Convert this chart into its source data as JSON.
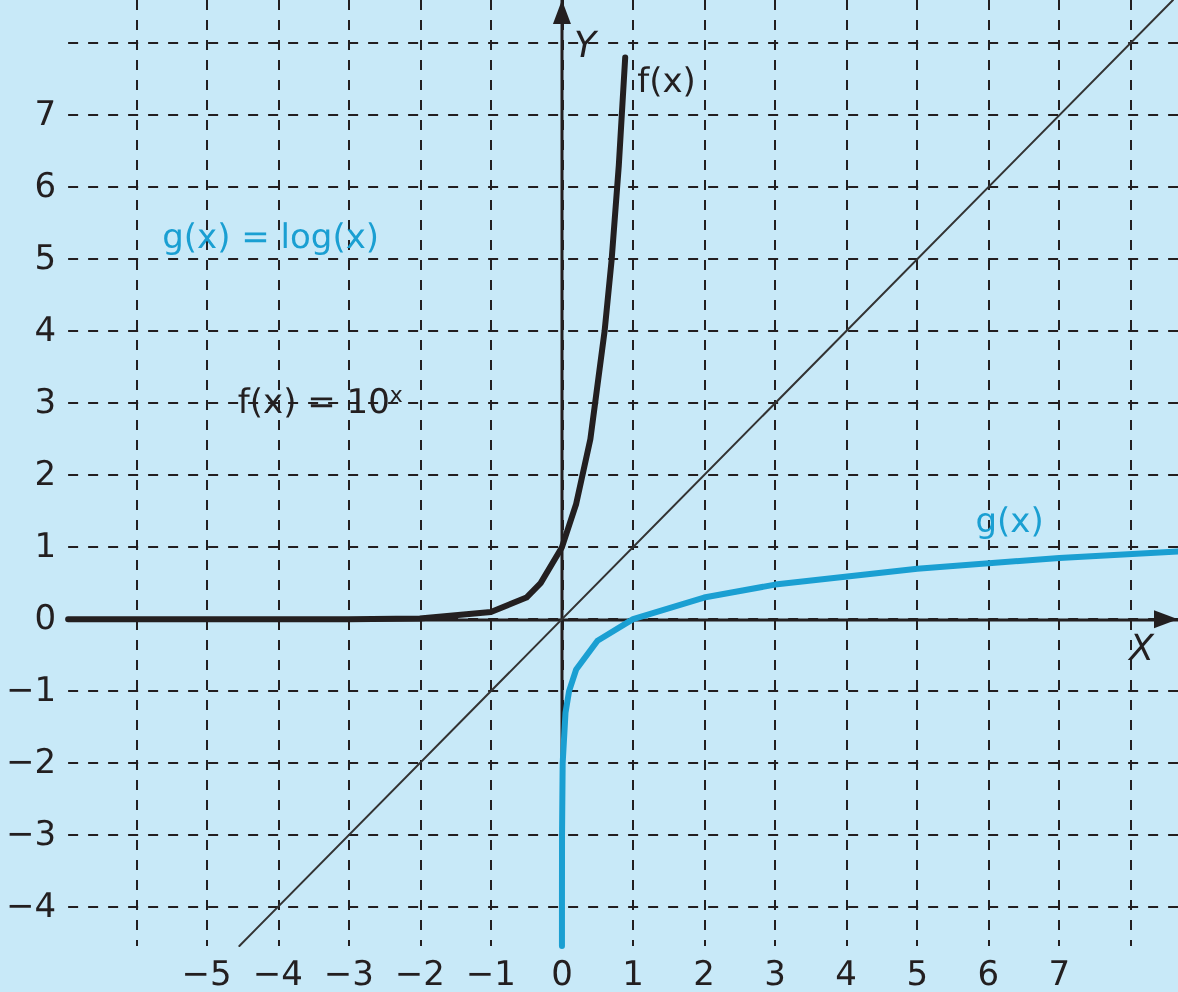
{
  "chart_data": {
    "type": "line",
    "xlabel": "X",
    "ylabel": "Y",
    "xlim": [
      -6.95,
      8.67
    ],
    "ylim": [
      -4.54,
      8.6
    ],
    "xticks": [
      {
        "value": -6,
        "label": null
      },
      "−5",
      -4,
      -3,
      -2,
      -1,
      0,
      1,
      2,
      3,
      4,
      5,
      6,
      7,
      {
        "value": 8,
        "label": null
      }
    ],
    "yticks": [
      -4,
      -3,
      -2,
      -1,
      0,
      1,
      2,
      3,
      4,
      5,
      6,
      7,
      {
        "value": 8,
        "label": null
      }
    ],
    "grid": true,
    "marker": "none",
    "line_style": "solid",
    "series": [
      {
        "name": "f(x)",
        "color": "#231f20",
        "x": [
          -6.95,
          -3,
          -2,
          -1,
          -0.5,
          -0.3,
          0,
          0.2,
          0.4,
          0.6,
          0.7,
          0.8,
          0.89
        ],
        "values": [
          0,
          0,
          0.01,
          0.1,
          0.3,
          0.5,
          1,
          1.6,
          2.5,
          4,
          5,
          6.3,
          7.8
        ]
      },
      {
        "name": "g(x)",
        "color": "#1a9fd2",
        "x": [
          3e-05,
          0.0001,
          0.001,
          0.01,
          0.05,
          0.1,
          0.2,
          0.5,
          1,
          2,
          3,
          5,
          7,
          8.67
        ],
        "values": [
          -4.54,
          -4,
          -3,
          -2,
          -1.3,
          -1,
          -0.7,
          -0.3,
          0,
          0.3,
          0.48,
          0.7,
          0.85,
          0.94
        ]
      },
      {
        "color": "#333333",
        "x": [
          -4.54,
          8.6
        ],
        "values": [
          -4.54,
          8.6
        ]
      }
    ],
    "annotations": [
      "g(x) = log(x)",
      "f(x) = 10$^{x}$"
    ]
  }
}
